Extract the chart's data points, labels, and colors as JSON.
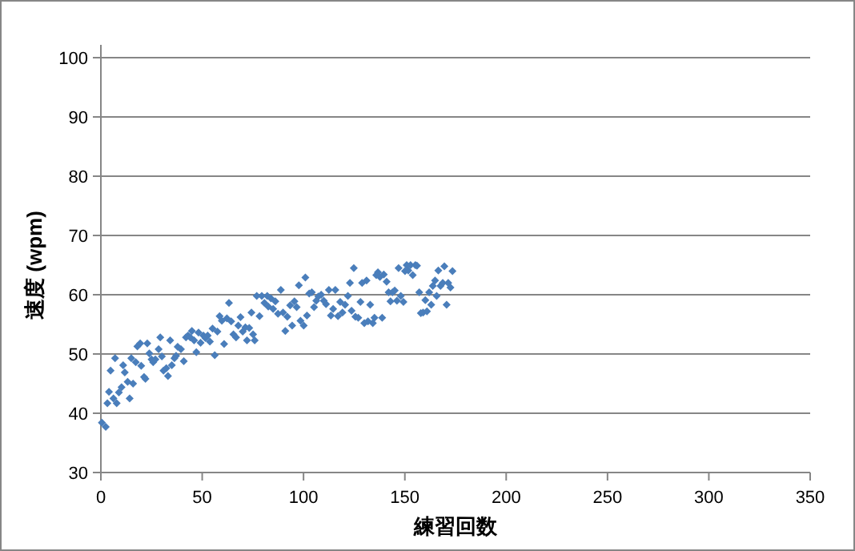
{
  "chart_data": {
    "type": "scatter",
    "xlabel": "練習回数",
    "ylabel": "速度 (wpm)",
    "color": "#4a7ebb",
    "marker": "diamond",
    "grid": "y",
    "xlim": [
      0,
      350
    ],
    "ylim": [
      30,
      100
    ],
    "xticks": [
      0,
      50,
      100,
      150,
      200,
      250,
      300,
      350
    ],
    "yticks": [
      30,
      40,
      50,
      60,
      70,
      80,
      90,
      100
    ],
    "x": [
      0.5,
      2.4,
      3.2,
      4,
      4.8,
      6.2,
      7,
      7.8,
      8.9,
      10.2,
      11,
      11.8,
      13.2,
      14.2,
      15,
      15.9,
      17.2,
      18,
      19.4,
      19.9,
      21.3,
      22,
      22.9,
      23.9,
      25,
      25.8,
      26.9,
      28.5,
      29.3,
      30.1,
      30.9,
      32.3,
      33.1,
      34.2,
      35,
      36.3,
      37.1,
      37.9,
      39.5,
      40.9,
      42,
      43,
      44.1,
      44.9,
      46,
      47.1,
      48.2,
      49.2,
      50.6,
      51.6,
      52.7,
      53.8,
      55.1,
      56.2,
      57.5,
      58.6,
      59.7,
      60.8,
      62.2,
      63.2,
      64.3,
      65.4,
      66.7,
      67.8,
      68.9,
      70,
      71.3,
      72.1,
      73.2,
      74.3,
      75.1,
      75.9,
      76.9,
      78.3,
      79.4,
      80.7,
      82.1,
      82.6,
      83.9,
      85,
      86.1,
      87.4,
      88.8,
      89.9,
      91,
      92,
      93.4,
      94.4,
      95.5,
      96.6,
      97.7,
      98.5,
      100.1,
      100.9,
      101.7,
      102.8,
      104.1,
      105.2,
      106.3,
      107.3,
      108.7,
      110,
      111.1,
      112.5,
      113.5,
      114.6,
      115.7,
      117,
      118.1,
      119.2,
      120.5,
      121.9,
      122.9,
      123.7,
      124.8,
      125.6,
      127,
      128.1,
      128.9,
      130,
      131.1,
      131.8,
      132.9,
      134.2,
      135,
      135.9,
      136.7,
      137.7,
      138.8,
      139.6,
      141,
      142,
      142.9,
      143.9,
      145,
      146.1,
      146.9,
      148,
      149.3,
      150.1,
      150.9,
      151.7,
      152.8,
      153.9,
      155.2,
      156,
      157.1,
      157.9,
      159,
      160.1,
      160.9,
      162,
      163,
      163.8,
      164.9,
      165.7,
      166.5,
      167.6,
      168.7,
      169.5,
      170.6,
      171.4,
      172.5,
      173.5
    ],
    "values": [
      38.4,
      37.7,
      41.7,
      43.6,
      47.2,
      42.5,
      49.3,
      41.7,
      43.5,
      44.4,
      48.1,
      46.9,
      45.3,
      42.5,
      49.3,
      45,
      48.6,
      51.3,
      51.8,
      48,
      46.1,
      45.8,
      51.8,
      50.1,
      49.1,
      48.6,
      49.1,
      50.8,
      52.8,
      49.6,
      47.2,
      47.6,
      46.3,
      52.3,
      48.1,
      49.3,
      49.7,
      51.2,
      50.8,
      48.8,
      52.8,
      53.1,
      52.8,
      53.9,
      52.3,
      50.3,
      53.6,
      51.9,
      53.1,
      52.7,
      53.1,
      52.1,
      54.3,
      49.8,
      53.8,
      56.4,
      55.6,
      51.7,
      56,
      58.6,
      55.5,
      53.3,
      52.8,
      54.8,
      56.2,
      53.8,
      54.5,
      52.3,
      54.4,
      57,
      53.3,
      52.3,
      59.8,
      56.4,
      59.8,
      58.6,
      59.8,
      58,
      59.4,
      57.6,
      58.9,
      56.8,
      60.8,
      57,
      53.9,
      56.3,
      58.2,
      54.8,
      58.9,
      57.9,
      61.6,
      55.6,
      54.8,
      62.9,
      56.5,
      60.2,
      60.4,
      57.9,
      59,
      59.7,
      60,
      59,
      58.4,
      60.8,
      56.5,
      57.6,
      60.8,
      56.4,
      58.8,
      57,
      58.3,
      59.8,
      62,
      57.3,
      64.5,
      56.3,
      56.1,
      58.8,
      62,
      55.2,
      62.4,
      55.5,
      58.3,
      55.2,
      56.1,
      63.3,
      63.8,
      63,
      56.1,
      63.4,
      62.2,
      60.4,
      58.9,
      60.4,
      60.7,
      59,
      64.5,
      59.8,
      58.8,
      64,
      65,
      64.1,
      65,
      63.3,
      65,
      64.9,
      60.4,
      56.9,
      57,
      59.1,
      57.2,
      60.4,
      58.3,
      61.5,
      62.4,
      59.8,
      64.1,
      61.5,
      62,
      64.8,
      58.3,
      62,
      61.2,
      64
    ]
  }
}
